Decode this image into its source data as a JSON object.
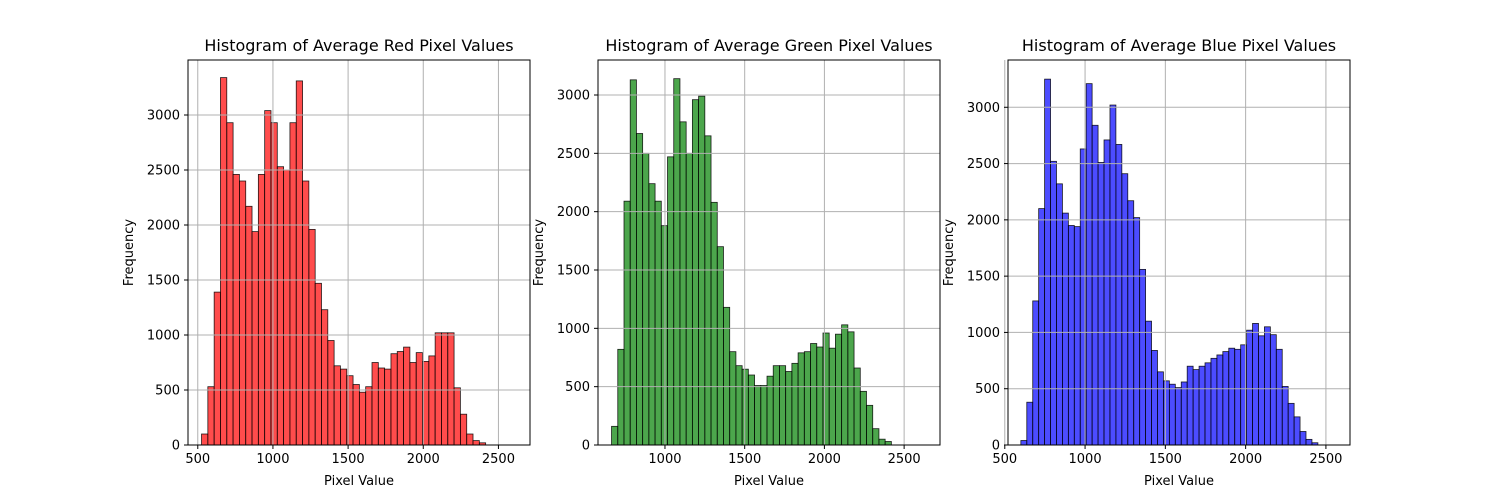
{
  "chart_data": [
    {
      "type": "bar",
      "title": "Histogram of Average Red Pixel Values",
      "xlabel": "Pixel Value",
      "ylabel": "Frequency",
      "color": "#ff0000",
      "alpha": 0.7,
      "grid": true,
      "xlim": [
        435,
        2710
      ],
      "ylim": [
        0,
        3500
      ],
      "xticks": [
        500,
        1000,
        1500,
        2000,
        2500
      ],
      "yticks": [
        0,
        500,
        1000,
        1500,
        2000,
        2500,
        3000
      ],
      "bin_start": 525,
      "bin_width": 42,
      "values": [
        100,
        530,
        1390,
        3340,
        2930,
        2460,
        2400,
        2170,
        1940,
        2460,
        3040,
        2930,
        2530,
        2500,
        2930,
        3310,
        2400,
        1960,
        1470,
        1230,
        950,
        720,
        690,
        630,
        550,
        480,
        530,
        750,
        700,
        690,
        830,
        850,
        890,
        750,
        840,
        760,
        810,
        1020,
        1020,
        1020,
        520,
        280,
        100,
        40,
        20
      ]
    },
    {
      "type": "bar",
      "title": "Histogram of Average Green Pixel Values",
      "xlabel": "Pixel Value",
      "ylabel": "Frequency",
      "color": "#008000",
      "alpha": 0.7,
      "grid": true,
      "xlim": [
        580,
        2725
      ],
      "ylim": [
        0,
        3300
      ],
      "xticks": [
        1000,
        1500,
        2000,
        2500
      ],
      "yticks": [
        0,
        500,
        1000,
        1500,
        2000,
        2500,
        3000
      ],
      "bin_start": 665,
      "bin_width": 39,
      "values": [
        160,
        820,
        2090,
        3130,
        2670,
        2500,
        2240,
        2090,
        1880,
        2470,
        3140,
        2770,
        2500,
        2960,
        2990,
        2650,
        2080,
        1700,
        1180,
        800,
        680,
        650,
        600,
        510,
        510,
        590,
        680,
        680,
        630,
        700,
        790,
        800,
        870,
        840,
        960,
        830,
        950,
        1030,
        970,
        660,
        460,
        340,
        140,
        50,
        30
      ]
    },
    {
      "type": "bar",
      "title": "Histogram of Average Blue Pixel Values",
      "xlabel": "Pixel Value",
      "ylabel": "Frequency",
      "color": "#0000ff",
      "alpha": 0.7,
      "grid": true,
      "xlim": [
        520,
        2650
      ],
      "ylim": [
        0,
        3420
      ],
      "xticks": [
        500,
        1000,
        1500,
        2000,
        2500
      ],
      "yticks": [
        0,
        500,
        1000,
        1500,
        2000,
        2500,
        3000
      ],
      "bin_start": 600,
      "bin_width": 37,
      "values": [
        40,
        380,
        1280,
        2100,
        3250,
        2520,
        2320,
        2060,
        1950,
        1940,
        2630,
        3210,
        2840,
        2510,
        2710,
        3020,
        2670,
        2410,
        2170,
        2020,
        1560,
        1100,
        840,
        650,
        570,
        540,
        510,
        560,
        700,
        670,
        700,
        730,
        770,
        800,
        830,
        860,
        850,
        890,
        1020,
        1080,
        970,
        1050,
        980,
        850,
        520,
        370,
        250,
        120,
        50,
        20
      ]
    }
  ]
}
